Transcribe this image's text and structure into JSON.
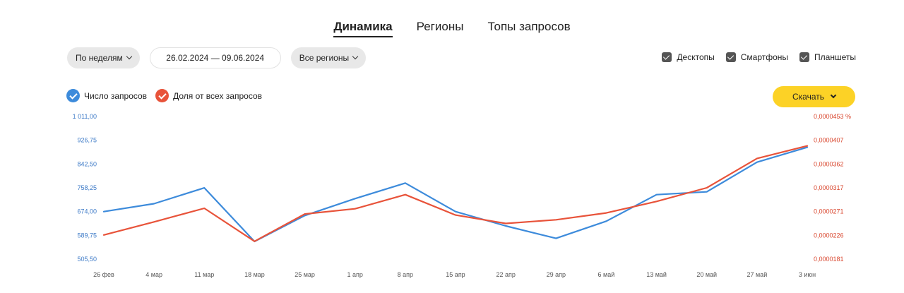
{
  "tabs": [
    {
      "label": "Динамика",
      "active": true
    },
    {
      "label": "Регионы",
      "active": false
    },
    {
      "label": "Топы запросов",
      "active": false
    }
  ],
  "controls": {
    "period": "По неделям",
    "date_range": "26.02.2024 — 09.06.2024",
    "regions": "Все регионы"
  },
  "devices": [
    {
      "label": "Десктопы",
      "checked": true
    },
    {
      "label": "Смартфоны",
      "checked": true
    },
    {
      "label": "Планшеты",
      "checked": true
    }
  ],
  "legend": [
    {
      "label": "Число запросов",
      "color": "#3d8bdb"
    },
    {
      "label": "Доля от всех запросов",
      "color": "#e8533a"
    }
  ],
  "download_label": "Скачать",
  "chart_data": {
    "type": "line",
    "x": [
      "26 фев",
      "4 мар",
      "11 мар",
      "18 мар",
      "25 мар",
      "1 апр",
      "8 апр",
      "15 апр",
      "22 апр",
      "29 апр",
      "6 май",
      "13 май",
      "20 май",
      "27 май",
      "3 июн"
    ],
    "y_left_ticks": [
      "1 011,00",
      "926,75",
      "842,50",
      "758,25",
      "674,00",
      "589,75",
      "505,50"
    ],
    "y_right_ticks": [
      "0,0000453 %",
      "0,0000407",
      "0,0000362",
      "0,0000317",
      "0,0000271",
      "0,0000226",
      "0,0000181"
    ],
    "ylim_left": [
      505.5,
      1011.0
    ],
    "ylim_right": [
      1.81e-05,
      4.53e-05
    ],
    "series": [
      {
        "name": "Число запросов",
        "axis": "left",
        "color": "#3d8bdb",
        "values": [
          674,
          702,
          758,
          568,
          660,
          720,
          775,
          674,
          623,
          579,
          640,
          734,
          744,
          849,
          902
        ]
      },
      {
        "name": "Доля от всех запросов",
        "axis": "right",
        "color": "#e8533a",
        "values": [
          2.27e-05,
          2.52e-05,
          2.78e-05,
          2.15e-05,
          2.67e-05,
          2.77e-05,
          3.04e-05,
          2.65e-05,
          2.49e-05,
          2.56e-05,
          2.69e-05,
          2.91e-05,
          3.17e-05,
          3.73e-05,
          3.97e-05
        ]
      }
    ]
  }
}
